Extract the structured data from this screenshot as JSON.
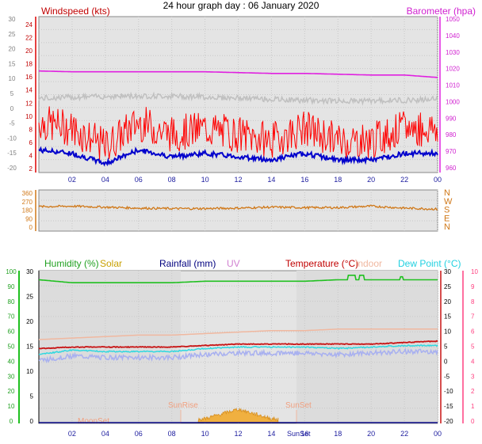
{
  "title": "24 hour graph day : 06 January 2020",
  "colors": {
    "wind": "#ff0000",
    "windAvg": "#0000cc",
    "gust_bg": "#c0c0c0",
    "baro": "#e020e0",
    "dir": "#d07818",
    "humidity": "#20c020",
    "solar": "#d8a818",
    "rain": "#00007f",
    "uv": "#d080d0",
    "temp": "#c81414",
    "indoor": "#f0b8a0",
    "dew": "#30d8e0",
    "dewShadow": "#a8b0f0",
    "bg": "#e4e4e4",
    "xaxis": "#2020a0"
  },
  "time_axis": [
    "02",
    "04",
    "06",
    "08",
    "10",
    "12",
    "14",
    "16",
    "18",
    "20",
    "22",
    "00"
  ],
  "panel1": {
    "left_label": "Windspeed (kts)",
    "right_label": "Barometer (hpa)",
    "left_outer_ticks": [
      "30",
      "25",
      "20",
      "15",
      "10",
      "5",
      "0",
      "-5",
      "-10",
      "-15",
      "-20"
    ],
    "left_inner_ticks": [
      "24",
      "22",
      "20",
      "18",
      "16",
      "14",
      "12",
      "10",
      "8",
      "6",
      "4",
      "2"
    ],
    "right_ticks": [
      "1050",
      "1040",
      "1030",
      "1020",
      "1010",
      "1000",
      "990",
      "980",
      "970",
      "960"
    ]
  },
  "panel2": {
    "left_ticks": [
      "360",
      "270",
      "180",
      "90",
      "0"
    ],
    "right_labels": [
      "N",
      "W",
      "S",
      "E",
      "N"
    ]
  },
  "panel3": {
    "labels": {
      "humidity": "Humidity (%)",
      "solar": "Solar",
      "rain": "Rainfall (mm)",
      "uv": "UV",
      "temp": "Temperature (°C)",
      "indoor": "Indoor",
      "dew": "Dew Point (°C)"
    },
    "left_outer_ticks": [
      "100",
      "90",
      "80",
      "70",
      "60",
      "50",
      "40",
      "30",
      "20",
      "10",
      "0"
    ],
    "left_inner_ticks": [
      "30",
      "25",
      "20",
      "15",
      "10",
      "5",
      "0"
    ],
    "right_ticks": [
      "30",
      "25",
      "20",
      "15",
      "10",
      "5",
      "0",
      "-5",
      "-10",
      "-15",
      "-20"
    ],
    "right_outer_ticks": [
      "10",
      "9",
      "8",
      "7",
      "6",
      "5",
      "4",
      "3",
      "2",
      "1",
      "0"
    ],
    "annotations": {
      "sunrise": "SunRise",
      "sunset": "SunSet",
      "moonset": "MoonSet",
      "sunset_axis": "SunSet"
    }
  },
  "chart_data": [
    {
      "type": "line",
      "title": "24 hour graph day : 06 January 2020",
      "ylabel": "Windspeed (kts)",
      "ylabel_right": "Barometer (hpa)",
      "x": [
        "00",
        "02",
        "04",
        "06",
        "08",
        "10",
        "12",
        "14",
        "16",
        "18",
        "20",
        "22",
        "00"
      ],
      "ylim": [
        0,
        24
      ],
      "ylim_right": [
        960,
        1050
      ],
      "series": [
        {
          "name": "Windspeed (kts)",
          "values": [
            7,
            6,
            3,
            7,
            5,
            6,
            5,
            4,
            6,
            4,
            4,
            6,
            6
          ]
        },
        {
          "name": "Barometer (hpa)",
          "values": [
            1020,
            1019.5,
            1019.5,
            1019.5,
            1019.5,
            1019.5,
            1019,
            1018.5,
            1018.5,
            1018,
            1017.5,
            1017.5,
            1016
          ]
        }
      ]
    },
    {
      "type": "line",
      "ylim": [
        0,
        360
      ],
      "x": [
        "00",
        "02",
        "04",
        "06",
        "08",
        "10",
        "12",
        "14",
        "16",
        "18",
        "20",
        "22",
        "00"
      ],
      "series": [
        {
          "values": [
            220,
            225,
            215,
            205,
            200,
            200,
            205,
            215,
            210,
            210,
            225,
            205,
            195
          ]
        }
      ]
    },
    {
      "type": "line",
      "ylabel": "Humidity (%)",
      "ylabel_right": "Temperature (°C)",
      "x": [
        "00",
        "02",
        "04",
        "06",
        "08",
        "10",
        "12",
        "14",
        "16",
        "18",
        "20",
        "22",
        "00"
      ],
      "ylim": [
        0,
        100
      ],
      "ylim_right": [
        -20,
        30
      ],
      "series": [
        {
          "name": "Humidity (%)",
          "values": [
            95,
            93,
            93,
            93,
            93,
            94,
            94,
            94,
            94,
            95,
            95,
            95,
            95
          ]
        },
        {
          "name": "Temperature (°C)",
          "values": [
            4.5,
            5,
            5,
            5,
            5,
            5.5,
            6,
            6,
            6,
            6,
            6,
            6.5,
            7
          ]
        },
        {
          "name": "Indoor",
          "values": [
            7.5,
            8,
            8.5,
            9,
            9,
            9.5,
            10,
            10.5,
            10.5,
            11,
            11,
            11,
            11
          ]
        },
        {
          "name": "Dew Point (°C)",
          "values": [
            2.5,
            4,
            3.5,
            3.5,
            3.5,
            4.5,
            5,
            5,
            5,
            4.5,
            5,
            5.5,
            5.5
          ]
        },
        {
          "name": "Rainfall (mm)",
          "values": [
            0,
            0,
            0,
            0,
            0,
            0,
            0,
            0,
            0,
            0,
            0,
            0,
            0
          ]
        },
        {
          "name": "Solar",
          "values": [
            0,
            0,
            0,
            0,
            0,
            1,
            4,
            1,
            0,
            0,
            0,
            0,
            0
          ]
        }
      ]
    }
  ]
}
